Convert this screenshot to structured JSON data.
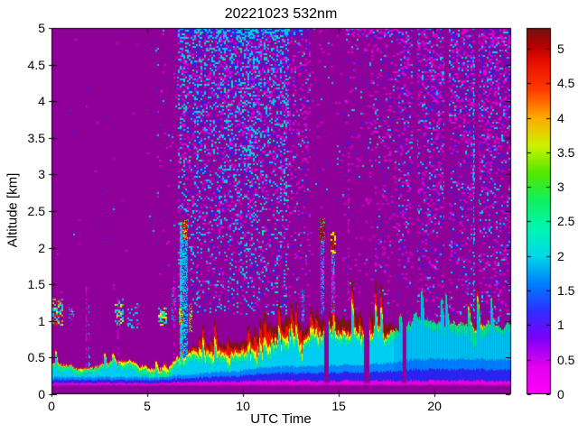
{
  "chart_data": {
    "type": "heatmap",
    "title": "20221023 532nm",
    "xlabel": "UTC Time",
    "ylabel": "Altitude [km]",
    "x_range": [
      0,
      24
    ],
    "y_range": [
      0,
      5
    ],
    "x_ticks": [
      0,
      5,
      10,
      15,
      20
    ],
    "y_ticks": [
      0,
      0.5,
      1,
      1.5,
      2,
      2.5,
      3,
      3.5,
      4,
      4.5,
      5
    ],
    "colorbar_ticks": [
      0,
      0.5,
      1,
      1.5,
      2,
      2.5,
      3,
      3.5,
      4,
      4.5,
      5
    ],
    "colorbar_vmax": 5.3,
    "grid": false,
    "legend": "colorbar-right",
    "background_color": "#8e0097",
    "colormap_stops": [
      [
        0.0,
        "#ff00ff"
      ],
      [
        0.4,
        "#e300ee"
      ],
      [
        0.8,
        "#8000fa"
      ],
      [
        1.2,
        "#2e2eff"
      ],
      [
        1.6,
        "#0080ff"
      ],
      [
        2.0,
        "#00d9e8"
      ],
      [
        2.4,
        "#00f6b4"
      ],
      [
        2.8,
        "#0ff060"
      ],
      [
        3.2,
        "#55e800"
      ],
      [
        3.6,
        "#ccf200"
      ],
      [
        4.0,
        "#ffaa00"
      ],
      [
        4.4,
        "#ff3c00"
      ],
      [
        4.8,
        "#e80f00"
      ],
      [
        5.05,
        "#b40000"
      ],
      [
        5.3,
        "#6e1212"
      ]
    ],
    "palette": {
      "magenta": "#e600dc",
      "pink": "#ff55ff",
      "blue": "#2a22ee",
      "lightblue": "#0085ff",
      "cyan": "#00cdf2",
      "green": "#00f08c",
      "deepgreen": "#22dd00",
      "yellow": "#eef200",
      "orange": "#ff9900",
      "red": "#f21100",
      "darkred": "#7d1414"
    },
    "noise_palettes": {
      "sparse": [
        [
          "magenta",
          0.5
        ],
        [
          "blue",
          0.3
        ],
        [
          "cyan",
          0.2
        ]
      ],
      "dense": [
        [
          "magenta",
          0.28
        ],
        [
          "blue",
          0.32
        ],
        [
          "cyan",
          0.3
        ],
        [
          "green",
          0.1
        ]
      ],
      "magheavy": [
        [
          "magenta",
          0.55
        ],
        [
          "blue",
          0.3
        ],
        [
          "cyan",
          0.12
        ],
        [
          "green",
          0.03
        ]
      ],
      "right": [
        [
          "magenta",
          0.45
        ],
        [
          "blue",
          0.33
        ],
        [
          "cyan",
          0.19
        ],
        [
          "green",
          0.03
        ]
      ],
      "topline": [
        [
          "blue",
          0.5
        ],
        [
          "cyan",
          0.4
        ],
        [
          "green",
          0.1
        ]
      ]
    },
    "noise_bands": [
      [
        0,
        5.4,
        1.3,
        5,
        0.007,
        "sparse",
        0
      ],
      [
        5.4,
        6.6,
        1.2,
        5,
        0.05,
        "sparse",
        0
      ],
      [
        6.6,
        7.6,
        1.0,
        5,
        0.5,
        "dense",
        1
      ],
      [
        7.6,
        12.4,
        1.1,
        5,
        0.62,
        "dense",
        1
      ],
      [
        12.4,
        13.5,
        1.2,
        5,
        0.28,
        "magheavy",
        1
      ],
      [
        13.5,
        15.2,
        1.2,
        5,
        0.035,
        "sparse",
        0
      ],
      [
        15.2,
        16.4,
        1.1,
        5,
        0.09,
        "magheavy",
        0
      ],
      [
        16.4,
        18.1,
        1.1,
        5,
        0.2,
        "magheavy",
        1
      ],
      [
        18.1,
        24,
        0.95,
        5,
        0.42,
        "right",
        1
      ],
      [
        6.6,
        13.2,
        4.86,
        5,
        0.85,
        "topline",
        0
      ],
      [
        15.2,
        18.1,
        4.88,
        5,
        0.5,
        "magheavy",
        0
      ]
    ],
    "noise_gaps": [
      [
        18.85,
        19.08,
        0.98,
        5
      ],
      [
        20.5,
        20.72,
        0.98,
        5
      ],
      [
        22.12,
        22.3,
        0.9,
        5
      ]
    ],
    "layer": {
      "base": 0.125,
      "spike_prob": 0.09,
      "spike_amp": 0.5,
      "stripe_after": 17.85,
      "profile": [
        [
          0,
          0.42,
          0.04,
          0.06,
          0.02,
          0.01,
          0,
          0.03
        ],
        [
          1,
          0.38,
          0.04,
          0.06,
          0.02,
          0.005,
          0,
          0.03
        ],
        [
          2,
          0.36,
          0.04,
          0.05,
          0.02,
          0.005,
          0,
          0.03
        ],
        [
          3,
          0.42,
          0.04,
          0.06,
          0.02,
          0.005,
          0,
          0.03
        ],
        [
          4,
          0.46,
          0.04,
          0.07,
          0.03,
          0.01,
          0,
          0.03
        ],
        [
          5,
          0.38,
          0.04,
          0.07,
          0.04,
          0.01,
          0,
          0.03
        ],
        [
          5.5,
          0.34,
          0.04,
          0.07,
          0.04,
          0.005,
          0,
          0.03
        ],
        [
          6,
          0.36,
          0.04,
          0.08,
          0.04,
          0.01,
          0,
          0.03
        ],
        [
          6.6,
          0.55,
          0.05,
          0.08,
          0.04,
          0.02,
          0,
          0.04
        ],
        [
          7.3,
          0.6,
          0.05,
          0.08,
          0.05,
          0.04,
          0.02,
          0.04
        ],
        [
          8,
          0.72,
          0.06,
          0.09,
          0.05,
          0.05,
          0.05,
          0.05
        ],
        [
          9,
          0.7,
          0.07,
          0.08,
          0.05,
          0.05,
          0.07,
          0.05
        ],
        [
          9.6,
          0.66,
          0.07,
          0.08,
          0.05,
          0.05,
          0.08,
          0.05
        ],
        [
          10.2,
          0.74,
          0.08,
          0.08,
          0.05,
          0.05,
          0.1,
          0.06
        ],
        [
          11,
          0.82,
          0.09,
          0.08,
          0.05,
          0.06,
          0.12,
          0.06
        ],
        [
          12,
          0.95,
          0.1,
          0.09,
          0.05,
          0.06,
          0.13,
          0.06
        ],
        [
          12.7,
          1.06,
          0.1,
          0.09,
          0.05,
          0.06,
          0.12,
          0.06
        ],
        [
          13.3,
          0.9,
          0.1,
          0.08,
          0.05,
          0.05,
          0.1,
          0.06
        ],
        [
          14,
          1.02,
          0.11,
          0.08,
          0.05,
          0.05,
          0.12,
          0.06
        ],
        [
          15,
          1.0,
          0.11,
          0.08,
          0.05,
          0.05,
          0.15,
          0.06
        ],
        [
          15.9,
          1.07,
          0.11,
          0.08,
          0.05,
          0.05,
          0.16,
          0.06
        ],
        [
          16.3,
          1.0,
          0.11,
          0.08,
          0.04,
          0.04,
          0.12,
          0.06
        ],
        [
          16.9,
          1.06,
          0.12,
          0.09,
          0.04,
          0.05,
          0.18,
          0.06
        ],
        [
          17.4,
          1.04,
          0.12,
          0.09,
          0.04,
          0.04,
          0.14,
          0.06
        ],
        [
          17.9,
          0.96,
          0.13,
          0.1,
          0.02,
          0.01,
          0.04,
          0.06
        ],
        [
          18.3,
          0.92,
          0.14,
          0.1,
          0,
          0,
          0,
          0.06
        ],
        [
          19,
          0.96,
          0.15,
          0.08,
          0,
          0,
          0,
          0.06
        ],
        [
          20,
          1.0,
          0.15,
          0.1,
          0,
          0,
          0,
          0.06
        ],
        [
          20.7,
          0.9,
          0.15,
          0.12,
          0,
          0,
          0,
          0.06
        ],
        [
          21.5,
          0.96,
          0.15,
          0.15,
          0.01,
          0,
          0,
          0.06
        ],
        [
          22.2,
          1.0,
          0.15,
          0.18,
          0.04,
          0.03,
          0.04,
          0.06
        ],
        [
          22.6,
          0.95,
          0.15,
          0.12,
          0.02,
          0,
          0,
          0.06
        ],
        [
          23.3,
          0.92,
          0.15,
          0.08,
          0,
          0,
          0,
          0.06
        ],
        [
          24,
          0.95,
          0.15,
          0.07,
          0,
          0,
          0,
          0.06
        ]
      ]
    },
    "layer_gaps": [
      [
        14.22,
        14.46,
        0.14,
        1.5
      ],
      [
        16.32,
        16.58,
        0.14,
        1.5
      ],
      [
        18.35,
        18.56,
        0.14,
        1.5
      ]
    ],
    "clouds": [
      [
        0.05,
        0.55,
        0.95,
        1.3,
        0.5,
        [
          [
            "red",
            0.22
          ],
          [
            "orange",
            0.13
          ],
          [
            "yellow",
            0.18
          ],
          [
            "green",
            0.15
          ],
          [
            "cyan",
            0.32
          ]
        ]
      ],
      [
        0.9,
        1.15,
        1.0,
        1.18,
        0.35,
        [
          [
            "cyan",
            0.7
          ],
          [
            "magenta",
            0.3
          ]
        ]
      ],
      [
        3.3,
        3.75,
        0.95,
        1.3,
        0.4,
        [
          [
            "yellow",
            0.3
          ],
          [
            "green",
            0.3
          ],
          [
            "cyan",
            0.4
          ]
        ]
      ],
      [
        3.95,
        4.55,
        0.9,
        1.25,
        0.3,
        [
          [
            "cyan",
            0.5
          ],
          [
            "green",
            0.3
          ],
          [
            "magenta",
            0.2
          ]
        ]
      ],
      [
        5.55,
        6.0,
        0.95,
        1.18,
        0.55,
        [
          [
            "yellow",
            0.45
          ],
          [
            "green",
            0.35
          ],
          [
            "cyan",
            0.2
          ]
        ]
      ],
      [
        6.28,
        6.5,
        1.0,
        1.45,
        0.3,
        [
          [
            "cyan",
            0.6
          ],
          [
            "magenta",
            0.4
          ]
        ]
      ],
      [
        6.7,
        6.8,
        0.45,
        2.35,
        0.85,
        [
          [
            "cyan",
            0.8
          ],
          [
            "green",
            0.2
          ]
        ]
      ],
      [
        6.66,
        6.84,
        0.95,
        1.18,
        0.8,
        [
          [
            "red",
            0.4
          ],
          [
            "yellow",
            0.3
          ],
          [
            "green",
            0.3
          ]
        ]
      ],
      [
        6.86,
        7.08,
        0.5,
        2.15,
        0.75,
        [
          [
            "cyan",
            0.55
          ],
          [
            "blue",
            0.3
          ],
          [
            "green",
            0.15
          ]
        ]
      ],
      [
        6.86,
        7.1,
        2.12,
        2.38,
        0.7,
        [
          [
            "red",
            0.4
          ],
          [
            "darkred",
            0.3
          ],
          [
            "yellow",
            0.3
          ]
        ]
      ],
      [
        7.15,
        7.35,
        0.85,
        1.25,
        0.45,
        [
          [
            "yellow",
            0.4
          ],
          [
            "red",
            0.3
          ],
          [
            "green",
            0.3
          ]
        ]
      ],
      [
        13.05,
        13.18,
        1.0,
        1.45,
        0.45,
        [
          [
            "cyan",
            0.6
          ],
          [
            "magenta",
            0.4
          ]
        ]
      ],
      [
        14.05,
        14.22,
        1.1,
        2.12,
        0.65,
        [
          [
            "cyan",
            0.5
          ],
          [
            "blue",
            0.3
          ],
          [
            "magenta",
            0.2
          ]
        ]
      ],
      [
        14.0,
        14.28,
        2.1,
        2.4,
        0.8,
        [
          [
            "darkred",
            0.55
          ],
          [
            "red",
            0.25
          ],
          [
            "green",
            0.2
          ]
        ]
      ],
      [
        14.6,
        14.8,
        1.1,
        1.95,
        0.55,
        [
          [
            "magenta",
            0.5
          ],
          [
            "cyan",
            0.5
          ]
        ]
      ],
      [
        14.55,
        14.85,
        1.93,
        2.22,
        0.8,
        [
          [
            "darkred",
            0.5
          ],
          [
            "red",
            0.2
          ],
          [
            "yellow",
            0.3
          ]
        ]
      ]
    ],
    "streaks": [
      [
        1.78,
        0.35,
        1.5,
        "magenta",
        0.5
      ],
      [
        1.95,
        0.35,
        1.3,
        "cyan",
        0.35
      ],
      [
        3.45,
        0.35,
        1.3,
        "magenta",
        0.5
      ],
      [
        6.35,
        0.5,
        1.6,
        "magenta",
        0.5
      ],
      [
        15.45,
        1.3,
        3.3,
        "magenta",
        0.3
      ],
      [
        22.0,
        1.1,
        4.6,
        "cyan",
        0.4
      ]
    ]
  }
}
